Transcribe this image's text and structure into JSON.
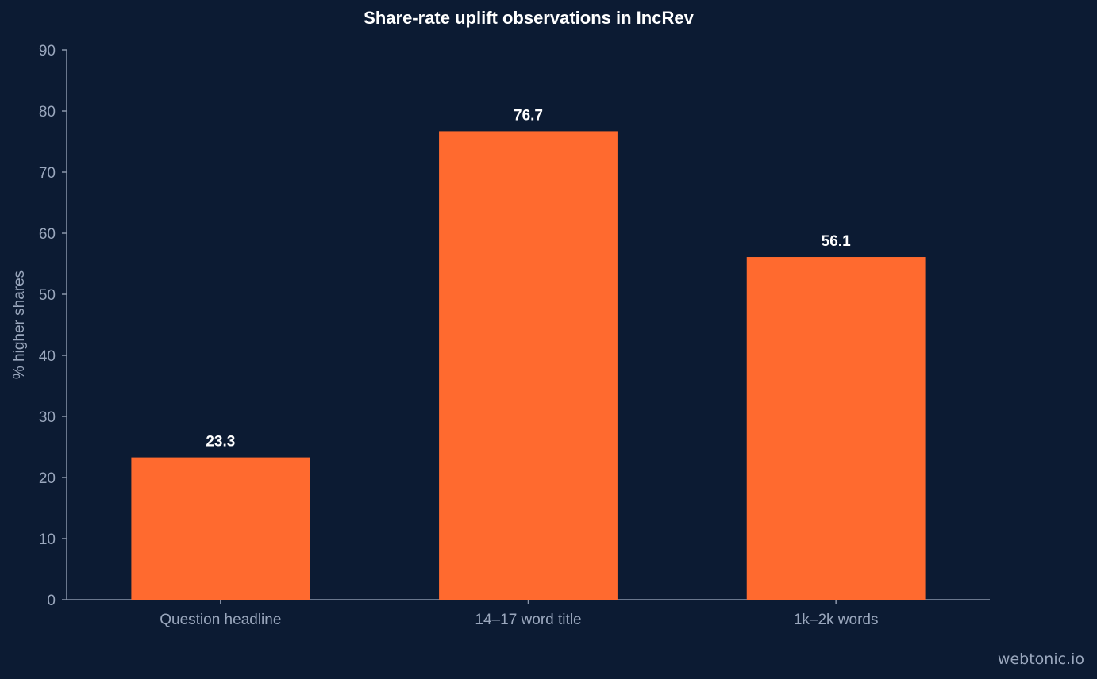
{
  "chart_data": {
    "type": "bar",
    "title": "Share-rate uplift observations in IncRev",
    "xlabel": "",
    "ylabel": "% higher shares",
    "categories": [
      "Question headline",
      "14–17 word title",
      "1k–2k words"
    ],
    "values": [
      23.3,
      76.7,
      56.1
    ],
    "value_labels": [
      "23.3",
      "76.7",
      "56.1"
    ],
    "ylim": [
      0,
      90
    ],
    "yticks": [
      0,
      10,
      20,
      30,
      40,
      50,
      60,
      70,
      80,
      90
    ],
    "grid": false,
    "legend": "none",
    "colors": {
      "background": "#0c1b33",
      "bar": "#ff6a2f",
      "axis": "#8a96ab",
      "tick_label": "#9aa7bd",
      "value_label": "#ffffff",
      "title": "#ffffff"
    }
  },
  "watermark": "webtonic.io"
}
